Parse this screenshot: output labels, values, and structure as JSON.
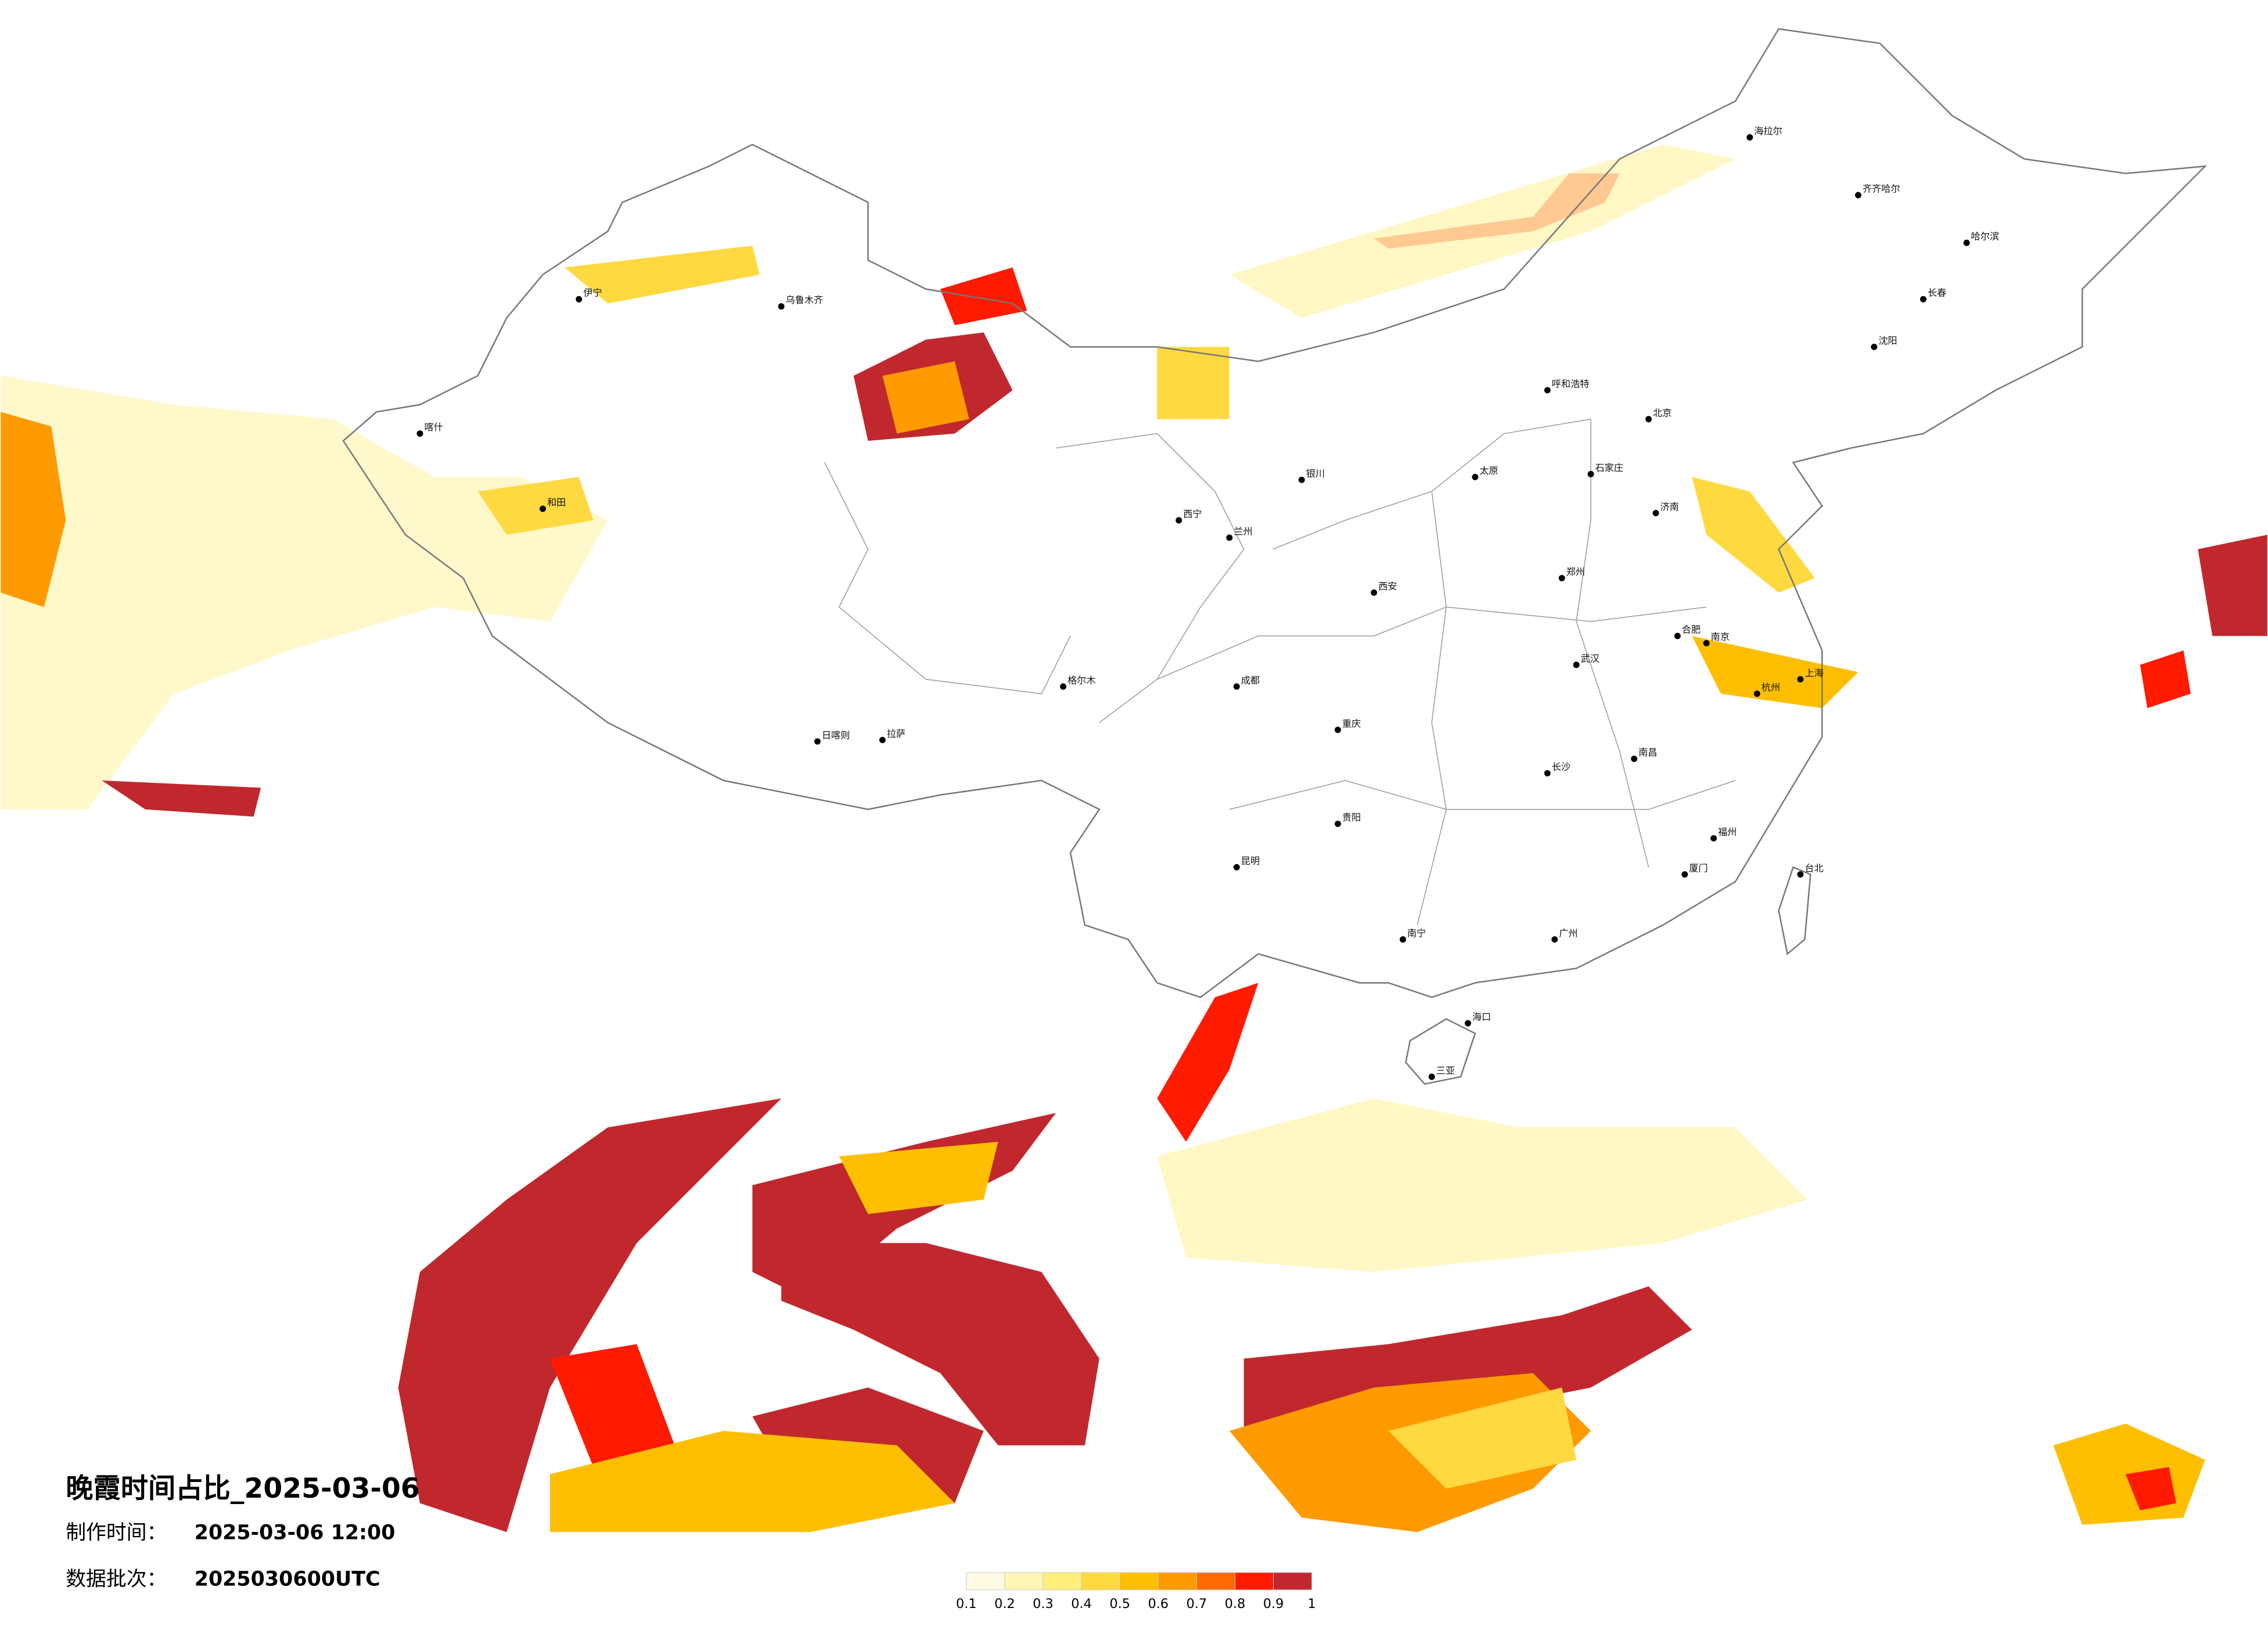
{
  "title": "晚霞时间占比_2025-03-06",
  "production_label": "制作时间：",
  "production_time": "2025-03-06 12:00",
  "batch_label": "数据批次：",
  "batch": "2025030600UTC",
  "legend": {
    "ticks": [
      0.1,
      0.2,
      0.3,
      0.4,
      0.5,
      0.6,
      0.7,
      0.8,
      0.9,
      1
    ],
    "colors": [
      "#fffbe3",
      "#fff5b5",
      "#ffee7c",
      "#ffd940",
      "#ffbf00",
      "#ff9a00",
      "#ff6a00",
      "#ff1a00",
      "#c0282d"
    ]
  },
  "cities": [
    "北京",
    "上海",
    "广州",
    "海口",
    "三亚",
    "拉萨",
    "乌鲁木齐",
    "哈尔滨",
    "长春",
    "沈阳",
    "呼和浩特",
    "西安",
    "成都",
    "重庆",
    "昆明",
    "贵阳",
    "南宁",
    "武汉",
    "长沙",
    "南昌",
    "福州",
    "台北",
    "兰州",
    "西宁",
    "银川",
    "郑州",
    "济南",
    "南京",
    "杭州",
    "喀什",
    "伊宁",
    "和田",
    "海拉尔",
    "齐齐哈尔",
    "太原",
    "石家庄",
    "合肥",
    "厦门",
    "日喀则",
    "格尔木"
  ]
}
